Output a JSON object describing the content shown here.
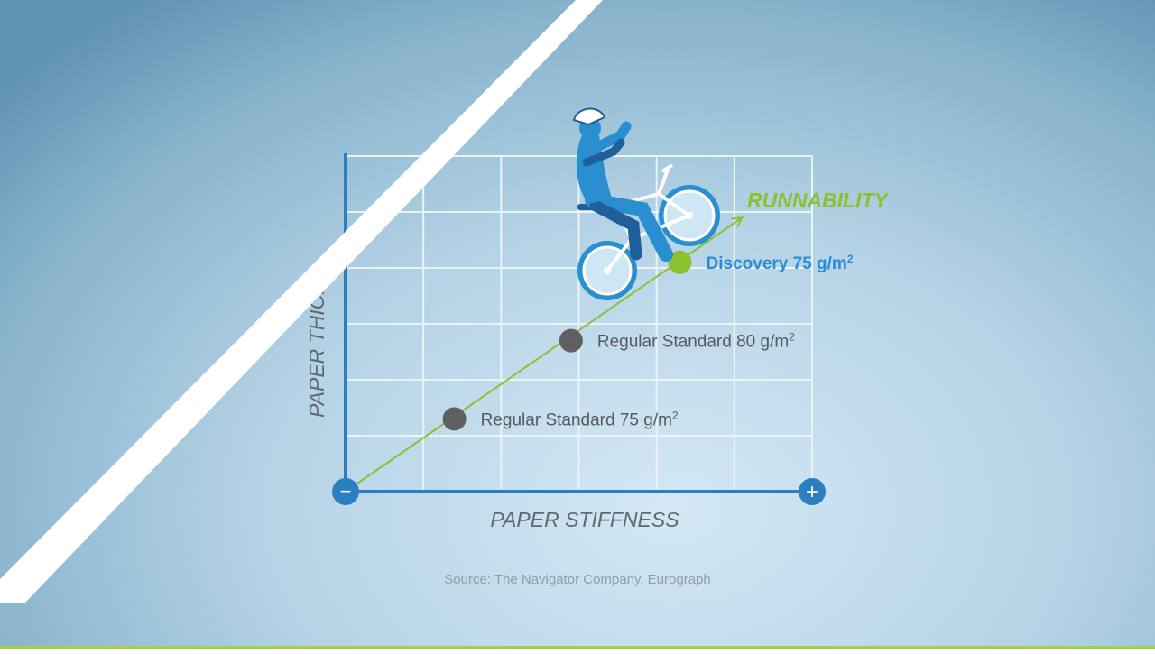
{
  "colors": {
    "grid": "#e9f3f9",
    "axis": "#2a7fc0",
    "trend": "#8dbf2e",
    "regular_point": "#5f5f5f",
    "highlight_point": "#8dbf2e",
    "highlight_label": "#2a8fd0",
    "regular_label": "#555a5e",
    "rider": "#2a8fd0",
    "rider_dark": "#1f5f9a",
    "stripe": "#ffffff",
    "bottom_line": "#a8cf45"
  },
  "icons": {
    "axis_min": "minus-icon",
    "axis_max": "plus-icon",
    "rider": "cyclist-icon"
  },
  "chart_data": {
    "type": "scatter",
    "xlabel": "PAPER STIFFNESS",
    "ylabel": "PAPER THICKNESS",
    "ylabel_visible": "PAPER THICK",
    "axis_min_label": "−",
    "axis_max_label": "+",
    "xlim": [
      0,
      6
    ],
    "ylim": [
      0,
      6
    ],
    "grid": true,
    "trend": {
      "label": "RUNNABILITY",
      "from": [
        0,
        0
      ],
      "to": [
        5.1,
        4.9
      ]
    },
    "points": [
      {
        "name": "Regular Standard 75 g/m",
        "sup": "2",
        "x": 1.4,
        "y": 1.3,
        "highlight": false
      },
      {
        "name": "Regular Standard 80 g/m",
        "sup": "2",
        "x": 2.9,
        "y": 2.7,
        "highlight": false
      },
      {
        "name": "Discovery 75 g/m",
        "sup": "2",
        "x": 4.3,
        "y": 4.1,
        "highlight": true
      }
    ]
  },
  "source": "Source: The Navigator Company, Eurograph"
}
